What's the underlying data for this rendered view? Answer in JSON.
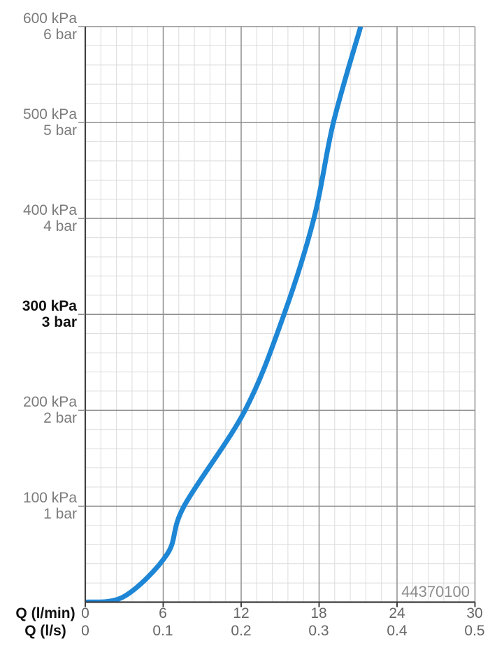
{
  "chart_data": {
    "type": "line",
    "title": "",
    "watermark": "44370100",
    "x_axis": {
      "caption_lmin": "Q (l/min)",
      "caption_ls": "Q (l/s)",
      "ticks_lmin": [
        "0",
        "6",
        "12",
        "18",
        "24",
        "30"
      ],
      "ticks_ls": [
        "0",
        "0.1",
        "0.2",
        "0.3",
        "0.4",
        "0.5"
      ],
      "range_lmin": [
        0,
        30
      ],
      "range_ls": [
        0,
        0.5
      ]
    },
    "y_axis": {
      "range_kpa": [
        0,
        600
      ],
      "ticks": [
        {
          "kpa": "600 kPa",
          "bar": "6 bar",
          "value_kpa": 600,
          "emphasized": false
        },
        {
          "kpa": "500 kPa",
          "bar": "5 bar",
          "value_kpa": 500,
          "emphasized": false
        },
        {
          "kpa": "400 kPa",
          "bar": "4 bar",
          "value_kpa": 400,
          "emphasized": false
        },
        {
          "kpa": "300 kPa",
          "bar": "3 bar",
          "value_kpa": 300,
          "emphasized": true
        },
        {
          "kpa": "200 kPa",
          "bar": "2 bar",
          "value_kpa": 200,
          "emphasized": false
        },
        {
          "kpa": "100 kPa",
          "bar": "1 bar",
          "value_kpa": 100,
          "emphasized": false
        }
      ]
    },
    "grid": {
      "major_x_step_lmin": 6,
      "major_y_step_kpa": 100,
      "minor_divisions_per_major": 5,
      "grid_on": true
    },
    "series": [
      {
        "name": "pressure-flow-curve",
        "color": "#1d86d5",
        "points_lmin_kpa": [
          [
            0,
            0
          ],
          [
            3,
            6
          ],
          [
            6.3,
            50
          ],
          [
            7.6,
            100
          ],
          [
            12.3,
            200
          ],
          [
            15.3,
            300
          ],
          [
            17.6,
            400
          ],
          [
            19.1,
            500
          ],
          [
            21.2,
            600
          ]
        ]
      }
    ],
    "legend": null
  },
  "colors": {
    "curve_blue": "#1d86d5",
    "grid_minor": "#dcdcdc",
    "grid_major": "#8f8f8f",
    "axis": "#3f3f3f",
    "label_gray": "#7b7b7b",
    "emphasis_black": "#111111",
    "watermark_gray": "#8e8e8e"
  }
}
